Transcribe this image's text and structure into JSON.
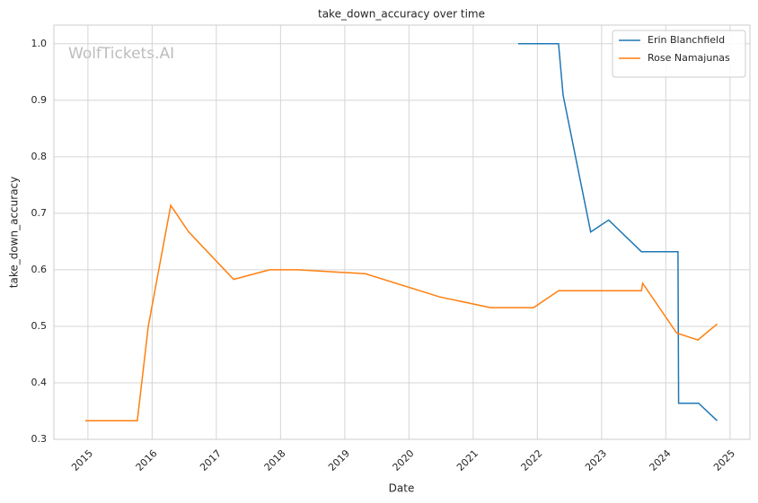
{
  "chart_data": {
    "type": "line",
    "title": "take_down_accuracy over time",
    "xlabel": "Date",
    "ylabel": "take_down_accuracy",
    "watermark": "WolfTickets.AI",
    "series": [
      {
        "name": "Erin Blanchfield",
        "color": "#1f77b4",
        "x": [
          2021.7,
          2022.33,
          2022.4,
          2022.83,
          2023.11,
          2023.62,
          2024.19,
          2024.2,
          2024.51,
          2024.8
        ],
        "values": [
          1.0,
          1.0,
          0.909,
          0.667,
          0.688,
          0.632,
          0.632,
          0.364,
          0.364,
          0.333
        ]
      },
      {
        "name": "Rose Namajunas",
        "color": "#ff7f0e",
        "x": [
          2014.96,
          2015.77,
          2015.94,
          2016.29,
          2016.57,
          2017.27,
          2017.83,
          2018.27,
          2019.32,
          2020.48,
          2021.27,
          2021.94,
          2022.33,
          2023.62,
          2023.64,
          2024.17,
          2024.5,
          2024.8
        ],
        "values": [
          0.333,
          0.333,
          0.5,
          0.714,
          0.667,
          0.583,
          0.6,
          0.6,
          0.593,
          0.552,
          0.533,
          0.533,
          0.563,
          0.563,
          0.576,
          0.488,
          0.476,
          0.504
        ]
      }
    ],
    "xlim": [
      2014.47,
      2025.31
    ],
    "xticks": [
      2015,
      2016,
      2017,
      2018,
      2019,
      2020,
      2021,
      2022,
      2023,
      2024,
      2025
    ],
    "ylim": [
      0.3,
      1.033
    ],
    "yticks": [
      0.3,
      0.4,
      0.5,
      0.6,
      0.7,
      0.8,
      0.9,
      {
        "value": 1,
        "label": "1.0"
      }
    ],
    "grid": true,
    "legend": "upper-right"
  }
}
